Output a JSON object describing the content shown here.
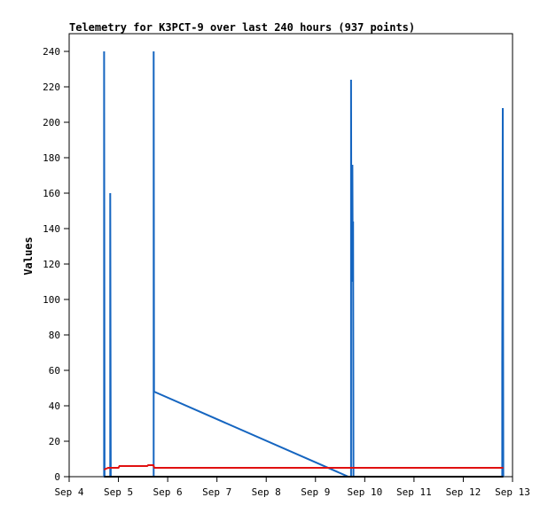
{
  "chart_data": {
    "type": "line",
    "title": "Telemetry for K3PCT-9 over last 240 hours (937 points)",
    "ylabel": "Values",
    "xlabel": "",
    "x_ticks": [
      "Sep 4",
      "Sep 5",
      "Sep 6",
      "Sep 7",
      "Sep 8",
      "Sep 9",
      "Sep 10",
      "Sep 11",
      "Sep 12",
      "Sep 13"
    ],
    "xlim": [
      "Sep 4 00:00",
      "Sep 13 00:00"
    ],
    "ylim": [
      0,
      250
    ],
    "y_ticks": [
      0,
      20,
      40,
      60,
      80,
      100,
      120,
      140,
      160,
      180,
      200,
      220,
      240
    ],
    "grid": false,
    "series": [
      {
        "color": "#1565c0",
        "points": [
          [
            "Sep 4 17:00",
            0
          ],
          [
            "Sep 4 17:00",
            240
          ],
          [
            "Sep 4 17:15",
            0
          ],
          [
            "Sep 4 20:00",
            0
          ],
          [
            "Sep 4 20:00",
            160
          ],
          [
            "Sep 4 20:15",
            0
          ],
          [
            "Sep 5 17:10",
            0
          ],
          [
            "Sep 5 17:10",
            240
          ],
          [
            "Sep 5 17:20",
            48
          ],
          [
            "Sep 9 16:00",
            0
          ],
          [
            "Sep 9 17:20",
            0
          ],
          [
            "Sep 9 17:20",
            224
          ],
          [
            "Sep 9 17:30",
            110
          ],
          [
            "Sep 9 17:40",
            162
          ],
          [
            "Sep 9 17:50",
            110
          ],
          [
            "Sep 9 18:00",
            176
          ],
          [
            "Sep 9 18:10",
            120
          ],
          [
            "Sep 9 18:20",
            144
          ],
          [
            "Sep 9 18:30",
            0
          ],
          [
            "Sep 12 19:00",
            0
          ],
          [
            "Sep 12 19:00",
            64
          ],
          [
            "Sep 12 19:15",
            208
          ],
          [
            "Sep 12 19:30",
            0
          ]
        ]
      },
      {
        "color": "#e01010",
        "points": [
          [
            "Sep 4 17:00",
            4
          ],
          [
            "Sep 4 19:00",
            5
          ],
          [
            "Sep 5 00:00",
            5
          ],
          [
            "Sep 5 00:30",
            6
          ],
          [
            "Sep 5 14:00",
            6
          ],
          [
            "Sep 5 14:30",
            6.5
          ],
          [
            "Sep 5 17:00",
            6.5
          ],
          [
            "Sep 5 17:30",
            5
          ],
          [
            "Sep 12 19:30",
            5
          ]
        ]
      },
      {
        "color": "#000000",
        "points": [
          [
            "Sep 4 17:00",
            0
          ],
          [
            "Sep 12 19:30",
            0
          ]
        ]
      }
    ]
  }
}
